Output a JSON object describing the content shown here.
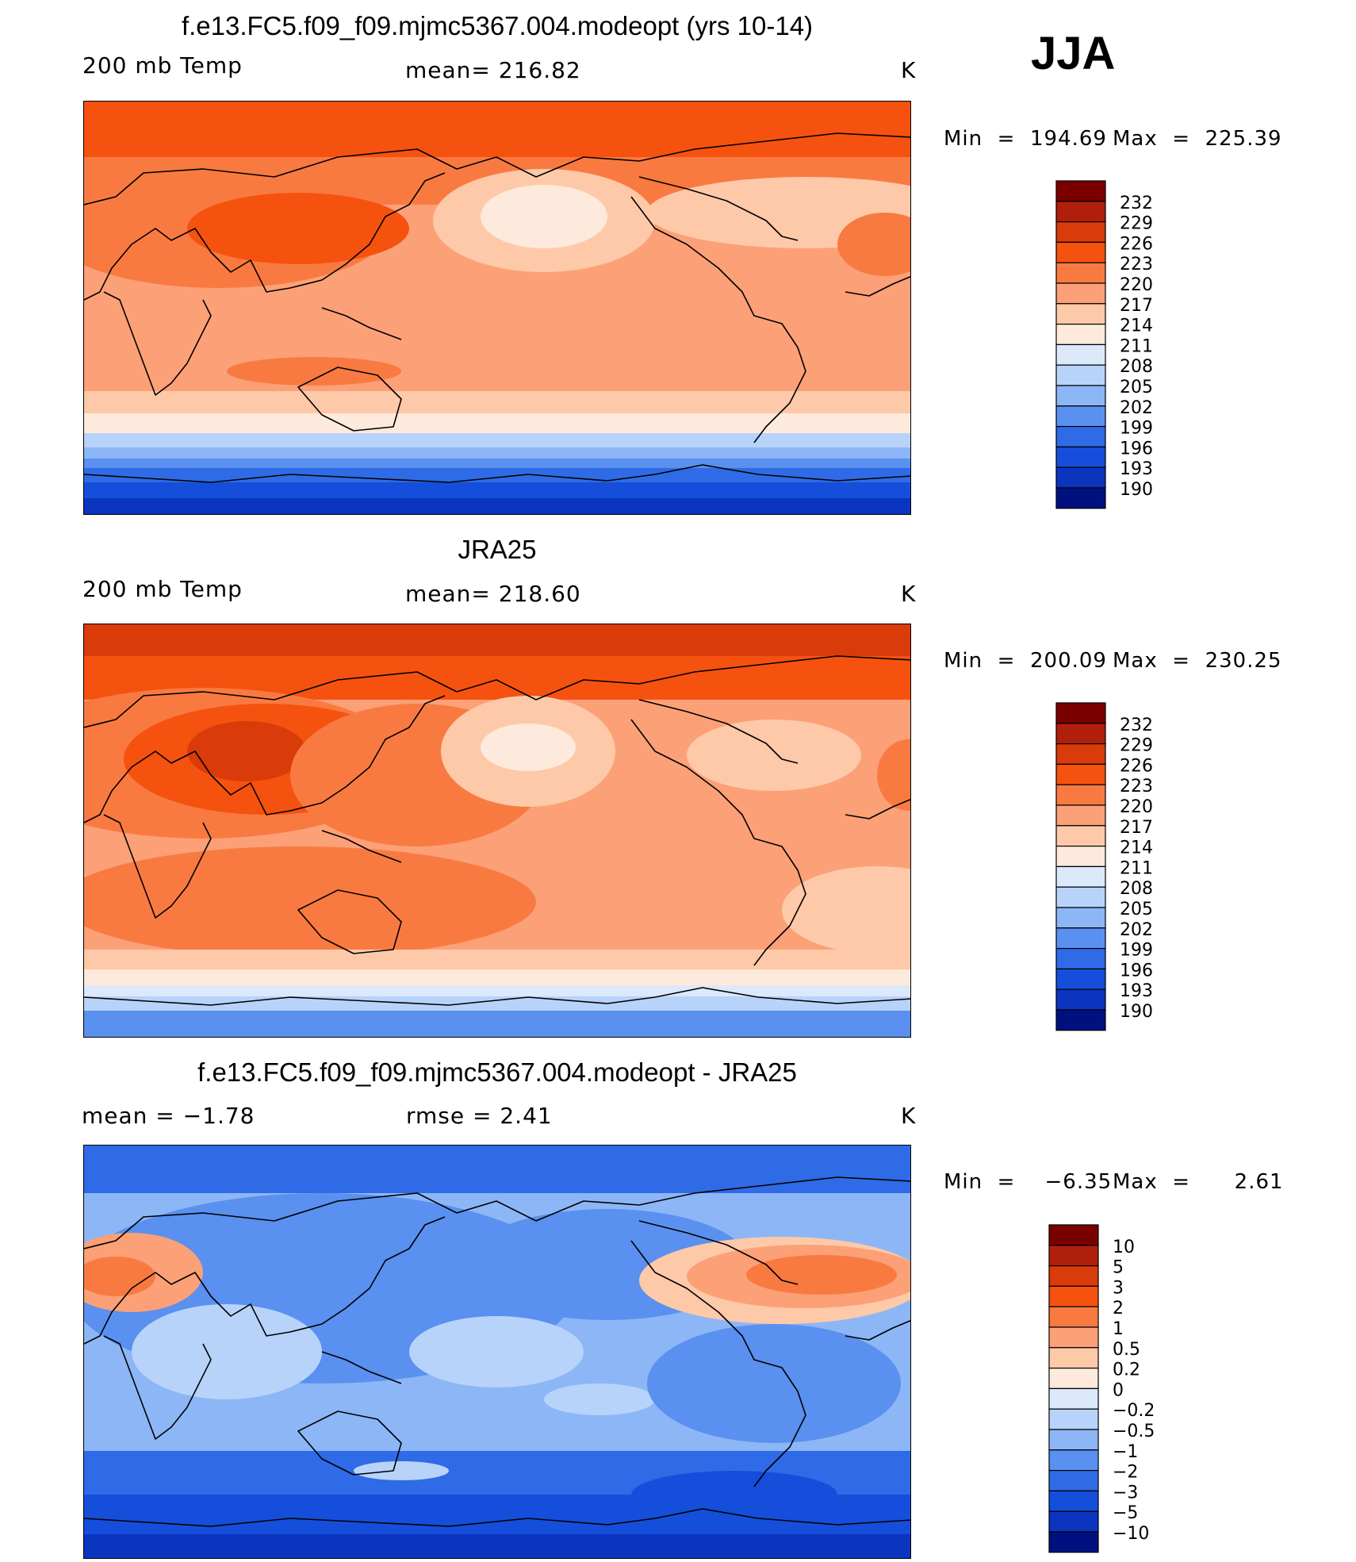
{
  "season": "JJA",
  "panels": [
    {
      "id": "model",
      "title": "f.e13.FC5.f09_f09.mjmc5367.004.modeopt (yrs 10-14)",
      "left_label": "200 mb Temp",
      "center_label": "mean=  216.82",
      "unit": "K",
      "min_label": "Min  =  194.69",
      "max_label": "Max  =  225.39",
      "map_style": "model"
    },
    {
      "id": "obs",
      "title": "JRA25",
      "left_label": "200 mb Temp",
      "center_label": "mean=  218.60",
      "unit": "K",
      "min_label": "Min  =  200.09",
      "max_label": "Max  =  230.25",
      "map_style": "obs"
    },
    {
      "id": "diff",
      "title": "f.e13.FC5.f09_f09.mjmc5367.004.modeopt - JRA25",
      "left_label": "mean  =    −1.78",
      "center_label": "rmse  =     2.41",
      "unit": "K",
      "min_label": "Min  =    −6.35",
      "max_label": "Max  =      2.61",
      "map_style": "diff"
    }
  ],
  "legends": {
    "abs": {
      "labels": [
        "232",
        "229",
        "226",
        "223",
        "220",
        "217",
        "214",
        "211",
        "208",
        "205",
        "202",
        "199",
        "196",
        "193",
        "190"
      ],
      "colors": [
        "#7a0000",
        "#b01f0b",
        "#d93b0a",
        "#f5520f",
        "#f97a41",
        "#fca078",
        "#fdc9a9",
        "#feeadc",
        "#dce9fb",
        "#b8d3fa",
        "#8db6f6",
        "#5a90ef",
        "#2f6be6",
        "#154edb",
        "#0b35bf",
        "#00117f"
      ]
    },
    "diff": {
      "labels": [
        "10",
        "5",
        "3",
        "2",
        "1",
        "0.5",
        "0.2",
        "0",
        "−0.2",
        "−0.5",
        "−1",
        "−2",
        "−3",
        "−5",
        "−10"
      ],
      "colors": [
        "#7a0000",
        "#b01f0b",
        "#d93b0a",
        "#f5520f",
        "#f97a41",
        "#fca078",
        "#fdc9a9",
        "#feeadc",
        "#dce9fb",
        "#b8d3fa",
        "#8db6f6",
        "#5a90ef",
        "#2f6be6",
        "#154edb",
        "#0b35bf",
        "#00117f"
      ]
    }
  },
  "colors": {
    "deep_red": "#7a0000",
    "orange": "#f5520f",
    "salmon": "#fca078",
    "peach": "#fdc9a9",
    "cream": "#feeadc",
    "light_blue": "#dce9fb",
    "blue": "#2f6be6",
    "navy": "#00117f"
  }
}
